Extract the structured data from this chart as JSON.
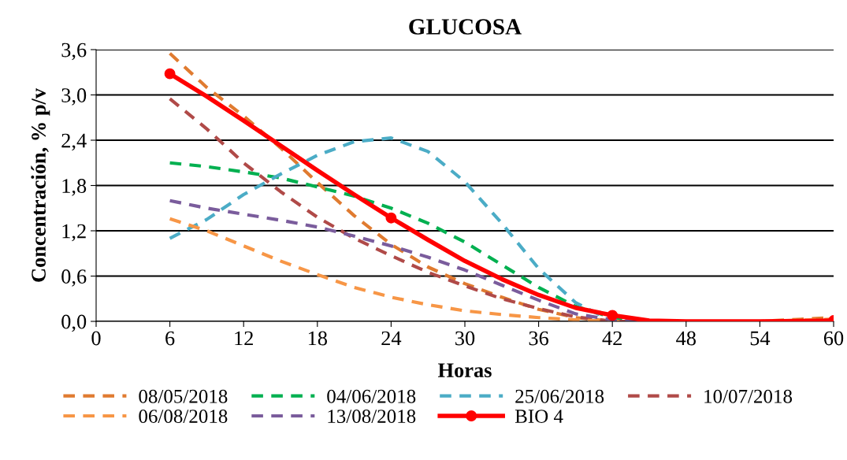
{
  "chart_data": {
    "type": "line",
    "title": "GLUCOSA",
    "xlabel": "Horas",
    "ylabel": "Concentración, % p/v",
    "x": [
      6,
      9,
      12,
      15,
      18,
      21,
      24,
      27,
      30,
      33,
      36,
      39,
      42,
      45,
      48,
      54,
      60
    ],
    "series": [
      {
        "name": "08/05/2018",
        "color": "#e07b30",
        "values": [
          3.55,
          3.1,
          2.72,
          2.3,
          1.84,
          1.4,
          1.02,
          0.72,
          0.5,
          0.32,
          0.16,
          0.05,
          0.0,
          0.0,
          0.0,
          0.0,
          0.05
        ],
        "line_style": "dashed",
        "marker": "none"
      },
      {
        "name": "04/06/2018",
        "color": "#00b050",
        "values": [
          2.1,
          2.05,
          1.98,
          1.9,
          1.78,
          1.66,
          1.5,
          1.3,
          1.05,
          0.75,
          0.45,
          0.2,
          0.05,
          0.0,
          null,
          null,
          null
        ],
        "line_style": "dashed",
        "marker": "none"
      },
      {
        "name": "25/06/2018",
        "color": "#4bacc6",
        "values": [
          1.1,
          1.35,
          1.68,
          1.95,
          2.2,
          2.38,
          2.43,
          2.25,
          1.85,
          1.3,
          0.7,
          0.25,
          0.0,
          0.0,
          null,
          null,
          null
        ],
        "line_style": "dashed",
        "marker": "none"
      },
      {
        "name": "10/07/2018",
        "color": "#b04a48",
        "values": [
          2.95,
          2.55,
          2.1,
          1.72,
          1.38,
          1.1,
          0.87,
          0.65,
          0.47,
          0.3,
          0.17,
          0.06,
          0.0,
          0.0,
          0.0,
          0.0,
          0.0
        ],
        "line_style": "dashed",
        "marker": "none"
      },
      {
        "name": "06/08/2018",
        "color": "#f79646",
        "values": [
          1.36,
          1.2,
          1.0,
          0.8,
          0.62,
          0.45,
          0.32,
          0.22,
          0.14,
          0.09,
          0.05,
          0.02,
          0.0,
          0.0,
          0.0,
          0.0,
          0.03
        ],
        "line_style": "dashed",
        "marker": "none"
      },
      {
        "name": "13/08/2018",
        "color": "#7a5c9c",
        "values": [
          1.6,
          1.5,
          1.42,
          1.34,
          1.25,
          1.13,
          1.0,
          0.85,
          0.68,
          0.48,
          0.28,
          0.1,
          0.02,
          0.0,
          0.0,
          0.0,
          0.0
        ],
        "line_style": "dashed",
        "marker": "none"
      },
      {
        "name": "BIO 4",
        "color": "#ff0000",
        "values": [
          3.28,
          2.98,
          2.66,
          2.33,
          2.0,
          1.68,
          1.37,
          1.08,
          0.8,
          0.56,
          0.35,
          0.18,
          0.08,
          0.01,
          0.0,
          0.0,
          0.01
        ],
        "line_style": "solid",
        "marker": "none"
      },
      {
        "type": "scatter",
        "color": "#ff0000",
        "x": [
          6,
          24,
          42,
          60
        ],
        "values": [
          3.28,
          1.37,
          0.08,
          0.01
        ],
        "marker": "circle"
      }
    ],
    "xlim": [
      0,
      60
    ],
    "xticks": [
      0,
      6,
      12,
      18,
      24,
      30,
      36,
      42,
      48,
      54,
      60
    ],
    "ylim": [
      0,
      3.6
    ],
    "yticks": [
      {
        "value": 0,
        "label": "0,0"
      },
      {
        "value": 0.6,
        "label": "0,6"
      },
      {
        "value": 1.2,
        "label": "1,2"
      },
      {
        "value": 1.8,
        "label": "1,8"
      },
      {
        "value": 2.4,
        "label": "2,4"
      },
      {
        "value": 3.0,
        "label": "3,0"
      },
      {
        "value": 3.6,
        "label": "3,6"
      }
    ],
    "grid": "y",
    "legend": "bottom"
  }
}
